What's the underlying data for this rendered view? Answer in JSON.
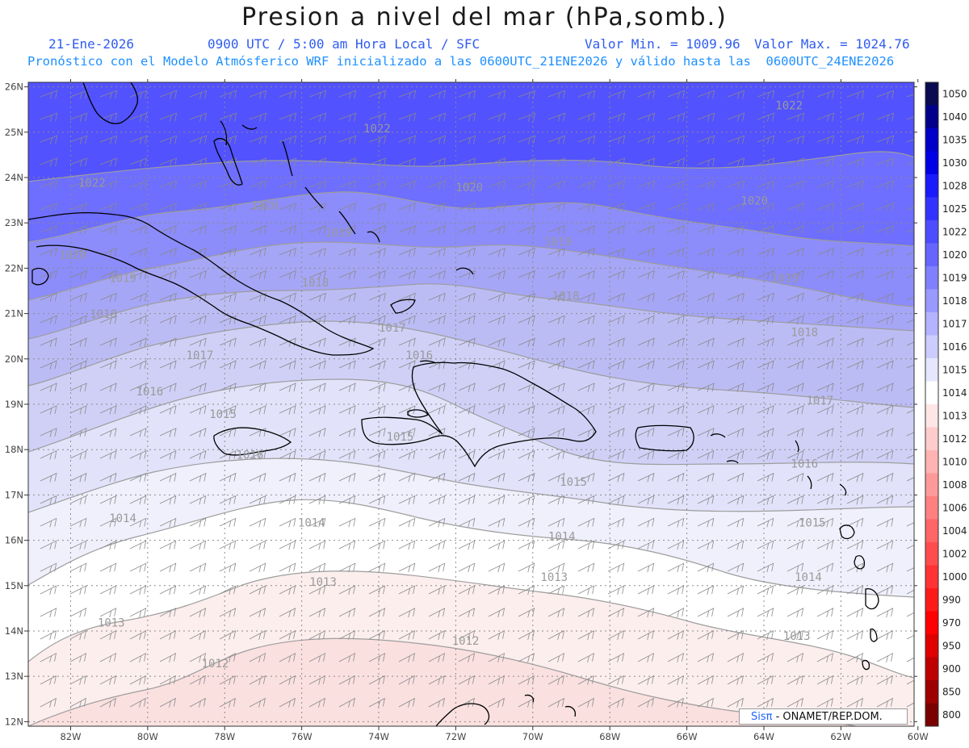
{
  "header": {
    "title": "Presion a nivel del mar (hPa,somb.)",
    "date": "21-Ene-2026",
    "time_info": "0900 UTC / 5:00 am Hora Local / SFC",
    "min_label": "Valor Min. = 1009.96",
    "max_label": "Valor Max. = 1024.76",
    "model_info": "Pronóstico con el Modelo Atmósferico WRF inicializado a las 0600UTC_21ENE2026 y válido hasta las  0600UTC_24ENE2026"
  },
  "map": {
    "lon_range": [
      -83.1,
      -60.1
    ],
    "lat_range": [
      11.9,
      26.1
    ],
    "lon_labels": [
      "82W",
      "80W",
      "78W",
      "76W",
      "74W",
      "72W",
      "70W",
      "68W",
      "66W",
      "64W",
      "62W",
      "60W"
    ],
    "lat_labels": [
      "12N",
      "13N",
      "14N",
      "15N",
      "16N",
      "17N",
      "18N",
      "19N",
      "20N",
      "21N",
      "22N",
      "23N",
      "24N",
      "25N",
      "26N"
    ],
    "contour_labels": [
      {
        "text": "1022",
        "lon": -81.8,
        "lat": 23.8
      },
      {
        "text": "1022",
        "lon": -74.4,
        "lat": 25.0
      },
      {
        "text": "1022",
        "lon": -63.7,
        "lat": 25.5
      },
      {
        "text": "1020",
        "lon": -82.3,
        "lat": 22.2
      },
      {
        "text": "1020",
        "lon": -77.3,
        "lat": 23.3
      },
      {
        "text": "1020",
        "lon": -72.0,
        "lat": 23.7
      },
      {
        "text": "1020",
        "lon": -64.6,
        "lat": 23.4
      },
      {
        "text": "1019",
        "lon": -81.0,
        "lat": 21.7
      },
      {
        "text": "1019",
        "lon": -75.4,
        "lat": 22.7
      },
      {
        "text": "1019",
        "lon": -69.7,
        "lat": 22.5
      },
      {
        "text": "1019",
        "lon": -63.8,
        "lat": 21.7
      },
      {
        "text": "1018",
        "lon": -81.5,
        "lat": 20.9
      },
      {
        "text": "1018",
        "lon": -76.0,
        "lat": 21.6
      },
      {
        "text": "1018",
        "lon": -69.5,
        "lat": 21.3
      },
      {
        "text": "1018",
        "lon": -63.3,
        "lat": 20.5
      },
      {
        "text": "1017",
        "lon": -79.0,
        "lat": 20.0
      },
      {
        "text": "1017",
        "lon": -74.0,
        "lat": 20.6
      },
      {
        "text": "1017",
        "lon": -62.9,
        "lat": 19.0
      },
      {
        "text": "1016",
        "lon": -80.3,
        "lat": 19.2
      },
      {
        "text": "1016",
        "lon": -73.3,
        "lat": 20.0
      },
      {
        "text": "1016",
        "lon": -63.3,
        "lat": 17.6
      },
      {
        "text": "1016",
        "lon": -77.7,
        "lat": 17.8
      },
      {
        "text": "1015",
        "lon": -78.4,
        "lat": 18.7
      },
      {
        "text": "1015",
        "lon": -73.8,
        "lat": 18.2
      },
      {
        "text": "1015",
        "lon": -69.3,
        "lat": 17.2
      },
      {
        "text": "1015",
        "lon": -63.1,
        "lat": 16.3
      },
      {
        "text": "1014",
        "lon": -81.0,
        "lat": 16.4
      },
      {
        "text": "1014",
        "lon": -76.1,
        "lat": 16.3
      },
      {
        "text": "1014",
        "lon": -69.6,
        "lat": 16.0
      },
      {
        "text": "1014",
        "lon": -63.2,
        "lat": 15.1
      },
      {
        "text": "1013",
        "lon": -81.3,
        "lat": 14.1
      },
      {
        "text": "1013",
        "lon": -75.8,
        "lat": 15.0
      },
      {
        "text": "1013",
        "lon": -69.8,
        "lat": 15.1
      },
      {
        "text": "1013",
        "lon": -63.5,
        "lat": 13.8
      },
      {
        "text": "1012",
        "lon": -78.6,
        "lat": 13.2
      },
      {
        "text": "1012",
        "lon": -72.1,
        "lat": 13.7
      }
    ]
  },
  "legend": {
    "labels": [
      "1050",
      "1040",
      "1035",
      "1030",
      "1028",
      "1025",
      "1022",
      "1020",
      "1019",
      "1018",
      "1017",
      "1016",
      "1015",
      "1014",
      "1013",
      "1012",
      "1010",
      "1008",
      "1006",
      "1004",
      "1002",
      "1000",
      "990",
      "970",
      "950",
      "900",
      "850",
      "800"
    ],
    "colors": [
      "#0a0a50",
      "#00008b",
      "#0000c8",
      "#0000e6",
      "#1a1aff",
      "#3333ff",
      "#4d4dff",
      "#6666ff",
      "#8080ff",
      "#9999ff",
      "#b3b3ff",
      "#ccccff",
      "#e6e6ff",
      "#ffffff",
      "#ffe6e6",
      "#ffcccc",
      "#ffb3b3",
      "#ff9999",
      "#ff8080",
      "#ff6666",
      "#ff4d4d",
      "#ff3333",
      "#ff1a1a",
      "#ff0000",
      "#e00000",
      "#bf0000",
      "#9e0000",
      "#7a0000"
    ]
  },
  "credit": {
    "logo": "Sisπ",
    "text": "- ONAMET/REP.DOM."
  },
  "colors": {
    "bands": [
      "#5252ff",
      "#6e6eff",
      "#8c8cfa",
      "#a6a6f7",
      "#bcbcf5",
      "#d0d0f7",
      "#e2e2fa",
      "#f0f0fd",
      "#ffffff",
      "#fdeeee",
      "#fbe0e0"
    ]
  }
}
